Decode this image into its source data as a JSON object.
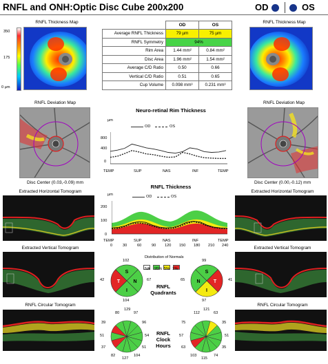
{
  "header": {
    "title": "RNFL and ONH:Optic Disc Cube 200x200",
    "od_label": "OD",
    "os_label": "OS",
    "eye_dot_color": "#17348a"
  },
  "thickness_map": {
    "title_left": "RNFL Thickness Map",
    "title_right": "RNFL Thickness Map",
    "scale_top": "350",
    "scale_mid": "175",
    "scale_bottom": "0 µm"
  },
  "params_table": {
    "col_od": "OD",
    "col_os": "OS",
    "rows": [
      {
        "label": "Average RNFL Thickness",
        "od": "79 µm",
        "os": "75 µm",
        "od_color": "#f8f000",
        "os_color": "#f8f000"
      },
      {
        "label": "RNFL Symmetry",
        "merged": "94%",
        "merged_color": "#47d447"
      },
      {
        "label": "Rim Area",
        "od": "1.44 mm²",
        "os": "0.84 mm²"
      },
      {
        "label": "Disc Area",
        "od": "1.96 mm²",
        "os": "1.54 mm²"
      },
      {
        "label": "Average C/D Ratio",
        "od": "0.50",
        "os": "0.66"
      },
      {
        "label": "Vertical C/D Ratio",
        "od": "0.51",
        "os": "0.65"
      },
      {
        "label": "Cup Volume",
        "od": "0.098 mm³",
        "os": "0.231 mm³"
      }
    ]
  },
  "deviation_map": {
    "title_left": "RNFL Deviation Map",
    "title_right": "RNFL Deviation Map",
    "disc_center_left": "Disc Center (0.03,-0.09) mm",
    "disc_center_right": "Disc Center (0.00,-0.12) mm"
  },
  "rim_chart": {
    "title": "Neuro-retinal Rim Thickness",
    "unit": "µm",
    "legend_od": "OD",
    "legend_os": "OS",
    "y_ticks": [
      "800",
      "400",
      "0"
    ],
    "x_ticks": [
      "TEMP",
      "SUP",
      "NAS",
      "INF",
      "TEMP"
    ]
  },
  "rnfl_chart": {
    "title": "RNFL Thickness",
    "unit": "µm",
    "legend_od": "OD",
    "legend_os": "OS",
    "y_ticks": [
      "200",
      "100",
      "0"
    ],
    "x_ticks_top": [
      "TEMP",
      "SUP",
      "NAS",
      "INF",
      "TEMP"
    ],
    "x_ticks_bottom": [
      "0",
      "30",
      "60",
      "90",
      "120",
      "150",
      "180",
      "210",
      "240"
    ]
  },
  "chart_data": [
    {
      "type": "line",
      "title": "Neuro-retinal Rim Thickness",
      "ylabel": "µm",
      "ylim": [
        0,
        800
      ],
      "x": [
        0,
        1,
        2,
        3,
        4,
        5,
        6,
        7,
        8,
        9,
        10,
        11,
        12,
        13,
        14,
        15,
        16
      ],
      "series": [
        {
          "name": "OD",
          "values": [
            330,
            360,
            410,
            520,
            470,
            420,
            390,
            350,
            300,
            280,
            320,
            420,
            390,
            320,
            300,
            310,
            350
          ]
        },
        {
          "name": "OS",
          "values": [
            170,
            200,
            270,
            350,
            310,
            260,
            240,
            200,
            170,
            180,
            300,
            260,
            200,
            160,
            150,
            140,
            140
          ]
        }
      ]
    },
    {
      "type": "line",
      "title": "RNFL Thickness",
      "ylabel": "µm",
      "ylim": [
        0,
        300
      ],
      "x": [
        0,
        15,
        30,
        45,
        60,
        75,
        90,
        105,
        120,
        135,
        150,
        165,
        180,
        195,
        210,
        225,
        240,
        255
      ],
      "series": [
        {
          "name": "OD",
          "values": [
            55,
            60,
            75,
            100,
            112,
            105,
            80,
            62,
            55,
            58,
            78,
            105,
            115,
            108,
            80,
            62,
            55,
            52
          ]
        },
        {
          "name": "OS",
          "values": [
            48,
            52,
            70,
            95,
            100,
            92,
            72,
            55,
            48,
            52,
            70,
            95,
            112,
            100,
            75,
            58,
            50,
            48
          ]
        }
      ]
    }
  ],
  "tomograms": {
    "horiz_left": "Extracted Horizontal Tomogram",
    "horiz_right": "Extracted Horizontal Tomogram",
    "vert_left": "Extracted Vertical Tomogram",
    "vert_right": "Extracted Vertical Tomogram",
    "circ_left": "RNFL Circular Tomogram",
    "circ_right": "RNFL Circular Tomogram"
  },
  "normals_legend": {
    "title": "Distribution of Normals",
    "labels": [
      "NA",
      "95%",
      "5%",
      "1%"
    ],
    "colors": [
      "#ffffff",
      "#4ccf46",
      "#f5ea10",
      "#e22525"
    ]
  },
  "quadrants": {
    "label_line1": "RNFL",
    "label_line2": "Quadrants",
    "od": {
      "S": "102",
      "N": "67",
      "I": "104",
      "T": "42"
    },
    "os": {
      "S": "99",
      "N": "65",
      "I": "97",
      "T": "41"
    },
    "od_colors": {
      "S": "#4ccf46",
      "N": "#4ccf46",
      "I": "#4ccf46",
      "T": "#e22525"
    },
    "os_colors": {
      "S": "#4ccf46",
      "N": "#4ccf46",
      "I": "#f5ea10",
      "T": "#e22525"
    }
  },
  "clock_hours": {
    "label_line1": "RNFL",
    "label_line2": "Clock",
    "label_line3": "Hours",
    "od_values": [
      "129",
      "97",
      "96",
      "54",
      "51",
      "104",
      "127",
      "82",
      "37",
      "51",
      "39",
      "80"
    ],
    "os_values": [
      "121",
      "63",
      "35",
      "51",
      "35",
      "74",
      "115",
      "103",
      "63",
      "57",
      "75",
      "112"
    ],
    "od_colors": [
      "#4ccf46",
      "#4ccf46",
      "#4ccf46",
      "#4ccf46",
      "#4ccf46",
      "#4ccf46",
      "#4ccf46",
      "#4ccf46",
      "#e22525",
      "#4ccf46",
      "#e22525",
      "#4ccf46"
    ],
    "os_colors": [
      "#4ccf46",
      "#f5ea10",
      "#4ccf46",
      "#4ccf46",
      "#4ccf46",
      "#4ccf46",
      "#4ccf46",
      "#4ccf46",
      "#e22525",
      "#4ccf46",
      "#4ccf46",
      "#4ccf46"
    ]
  }
}
